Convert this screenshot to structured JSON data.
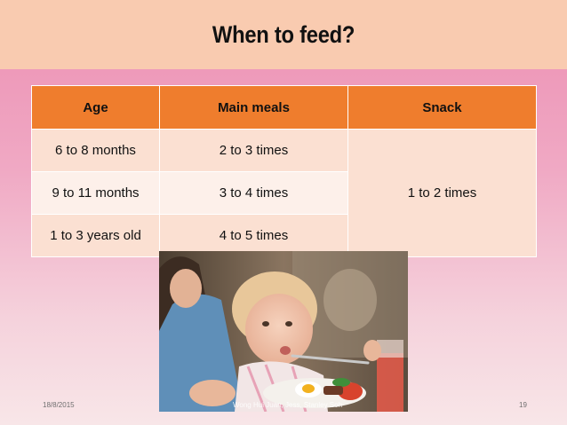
{
  "slide": {
    "title": "When to feed?"
  },
  "table": {
    "headers": [
      "Age",
      "Main meals",
      "Snack"
    ],
    "rows": [
      {
        "age": "6 to 8 months",
        "meals": "2 to 3 times"
      },
      {
        "age": "9 to 11 months",
        "meals": "3 to 4 times"
      },
      {
        "age": "1 to 3 years old",
        "meals": "4 to 5 times"
      }
    ],
    "snack_value": "1 to 2 times"
  },
  "footer": {
    "date": "18/8/2015",
    "author": "Wong Hui Juan, Jess, Stanley Soh",
    "page": "19"
  },
  "colors": {
    "header": "#ef7d2d",
    "title_bar": "#f9cbb0",
    "background_top": "#ec8fb3"
  }
}
